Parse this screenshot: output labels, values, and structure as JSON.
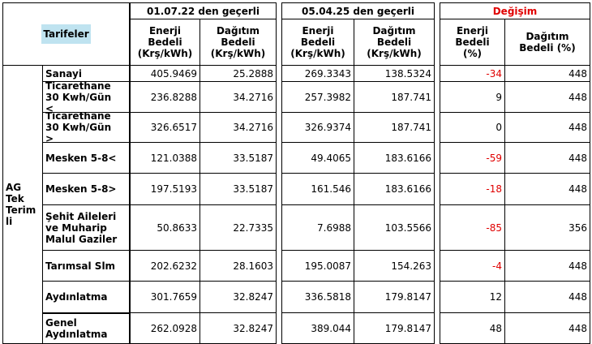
{
  "header": {
    "tarifeler": "Tarifeler",
    "group_label": [
      "AG",
      "Tek",
      "Terim",
      "li"
    ],
    "groups": [
      "01.07.22 den geçerli",
      "05.04.25 den geçerli",
      "Değişim"
    ],
    "columns": [
      [
        "Enerji",
        "Bedeli",
        "(Krş/kWh)"
      ],
      [
        "Dağıtım",
        "Bedeli",
        "(Krş/kWh)"
      ],
      [
        "Enerji",
        "Bedeli",
        "(Krş/kWh)"
      ],
      [
        "Dağıtım",
        "Bedeli",
        "(Krş/kWh)"
      ],
      [
        "Enerji",
        "Bedeli",
        "(%)"
      ],
      [
        "Dağıtım",
        "Bedeli (%)"
      ]
    ]
  },
  "table": {
    "rows": [
      {
        "name": [
          "Sanayi"
        ],
        "values": [
          405.9469,
          25.2888,
          269.3343,
          138.5324,
          -34,
          448
        ]
      },
      {
        "name": [
          "Ticarethane",
          "30 Kwh/Gün",
          "<"
        ],
        "values": [
          236.8288,
          34.2716,
          257.3982,
          187.741,
          9,
          448
        ]
      },
      {
        "name": [
          "Ticarethane",
          "30 Kwh/Gün",
          ">"
        ],
        "values": [
          326.6517,
          34.2716,
          326.9374,
          187.741,
          0,
          448
        ]
      },
      {
        "name": [
          "Mesken 5-8<"
        ],
        "values": [
          121.0388,
          33.5187,
          49.4065,
          183.6166,
          -59,
          448
        ]
      },
      {
        "name": [
          "Mesken 5-8>"
        ],
        "values": [
          197.5193,
          33.5187,
          161.546,
          183.6166,
          -18,
          448
        ]
      },
      {
        "name": [
          "Şehit Aileleri",
          "ve Muharip",
          "Malul Gaziler"
        ],
        "values": [
          50.8633,
          22.7335,
          7.6988,
          103.5566,
          -85,
          356
        ]
      },
      {
        "name": [
          "Tarımsal Slm"
        ],
        "values": [
          202.6232,
          28.1603,
          195.0087,
          154.263,
          -4,
          448
        ]
      },
      {
        "name": [
          "Aydınlatma"
        ],
        "values": [
          301.7659,
          32.8247,
          336.5818,
          179.8147,
          12,
          448
        ]
      },
      {
        "name": [
          "Genel",
          "Aydınlatma"
        ],
        "values": [
          262.0928,
          32.8247,
          389.044,
          179.8147,
          48,
          448
        ]
      }
    ]
  }
}
